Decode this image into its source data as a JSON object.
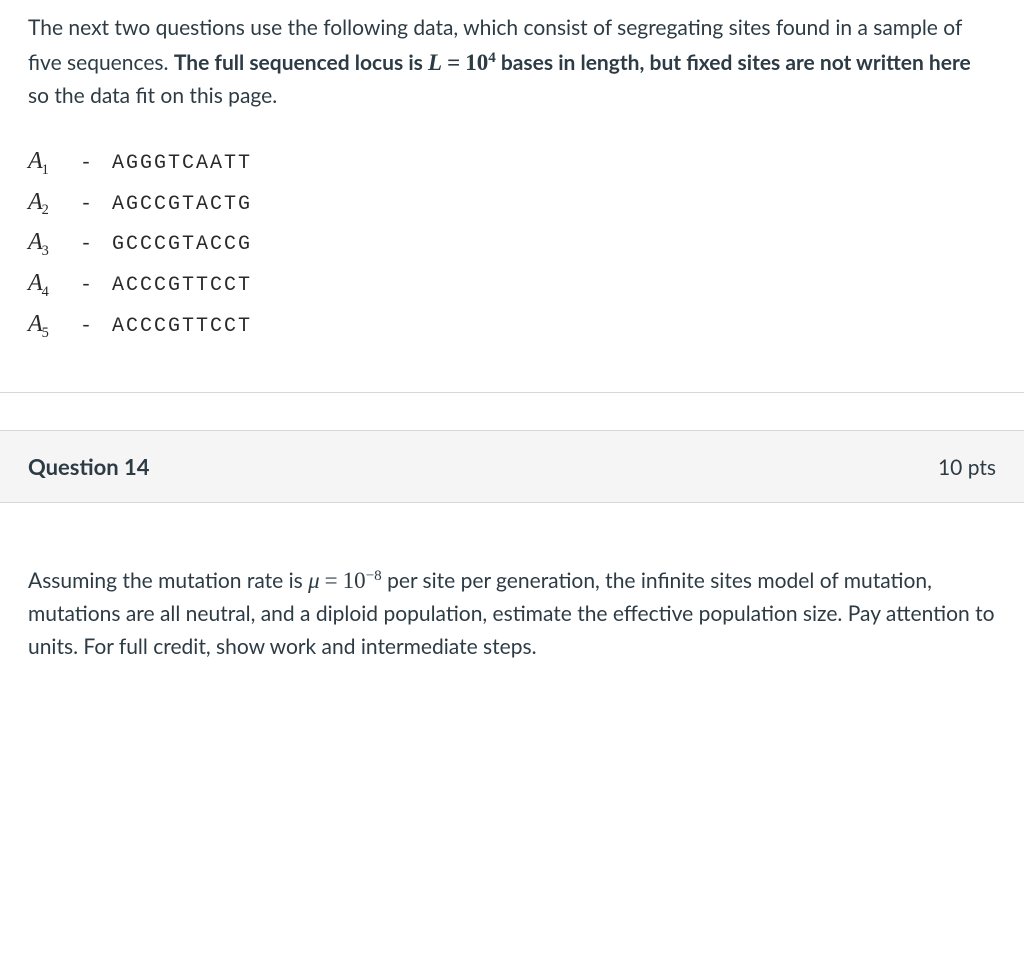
{
  "intro": {
    "text_before_bold": "The next two questions use the following data, which consist of segregating sites found in a sample of five sequences. ",
    "bold_prefix": "The full sequenced locus is ",
    "L_var": "L",
    "L_eq": "=",
    "L_base": "10",
    "L_exp": "4",
    "bold_suffix": " bases in length, but fixed sites are not written here",
    "text_after_bold": " so the data fit on this page."
  },
  "sequences": [
    {
      "label": "A",
      "sub": "1",
      "value": "AGGGTCAATT"
    },
    {
      "label": "A",
      "sub": "2",
      "value": "AGCCGTACTG"
    },
    {
      "label": "A",
      "sub": "3",
      "value": "GCCCGTACCG"
    },
    {
      "label": "A",
      "sub": "4",
      "value": "ACCCGTTCCT"
    },
    {
      "label": "A",
      "sub": "5",
      "value": "ACCCGTTCCT"
    }
  ],
  "question": {
    "number_label": "Question 14",
    "points": "10 pts",
    "body_part1": "Assuming the mutation rate is ",
    "mu_var": "μ",
    "mu_eq": "=",
    "mu_base": "10",
    "mu_exp": "−8",
    "body_part2": " per site per generation, the infinite sites model of mutation, mutations are all neutral, and a diploid population, estimate the effective population size. Pay attention to units. For full credit, show work and intermediate steps."
  },
  "style": {
    "text_color": "#2d3b45",
    "bg_color": "#ffffff",
    "header_bg": "#f5f5f5",
    "border_color": "#d6d9db"
  }
}
